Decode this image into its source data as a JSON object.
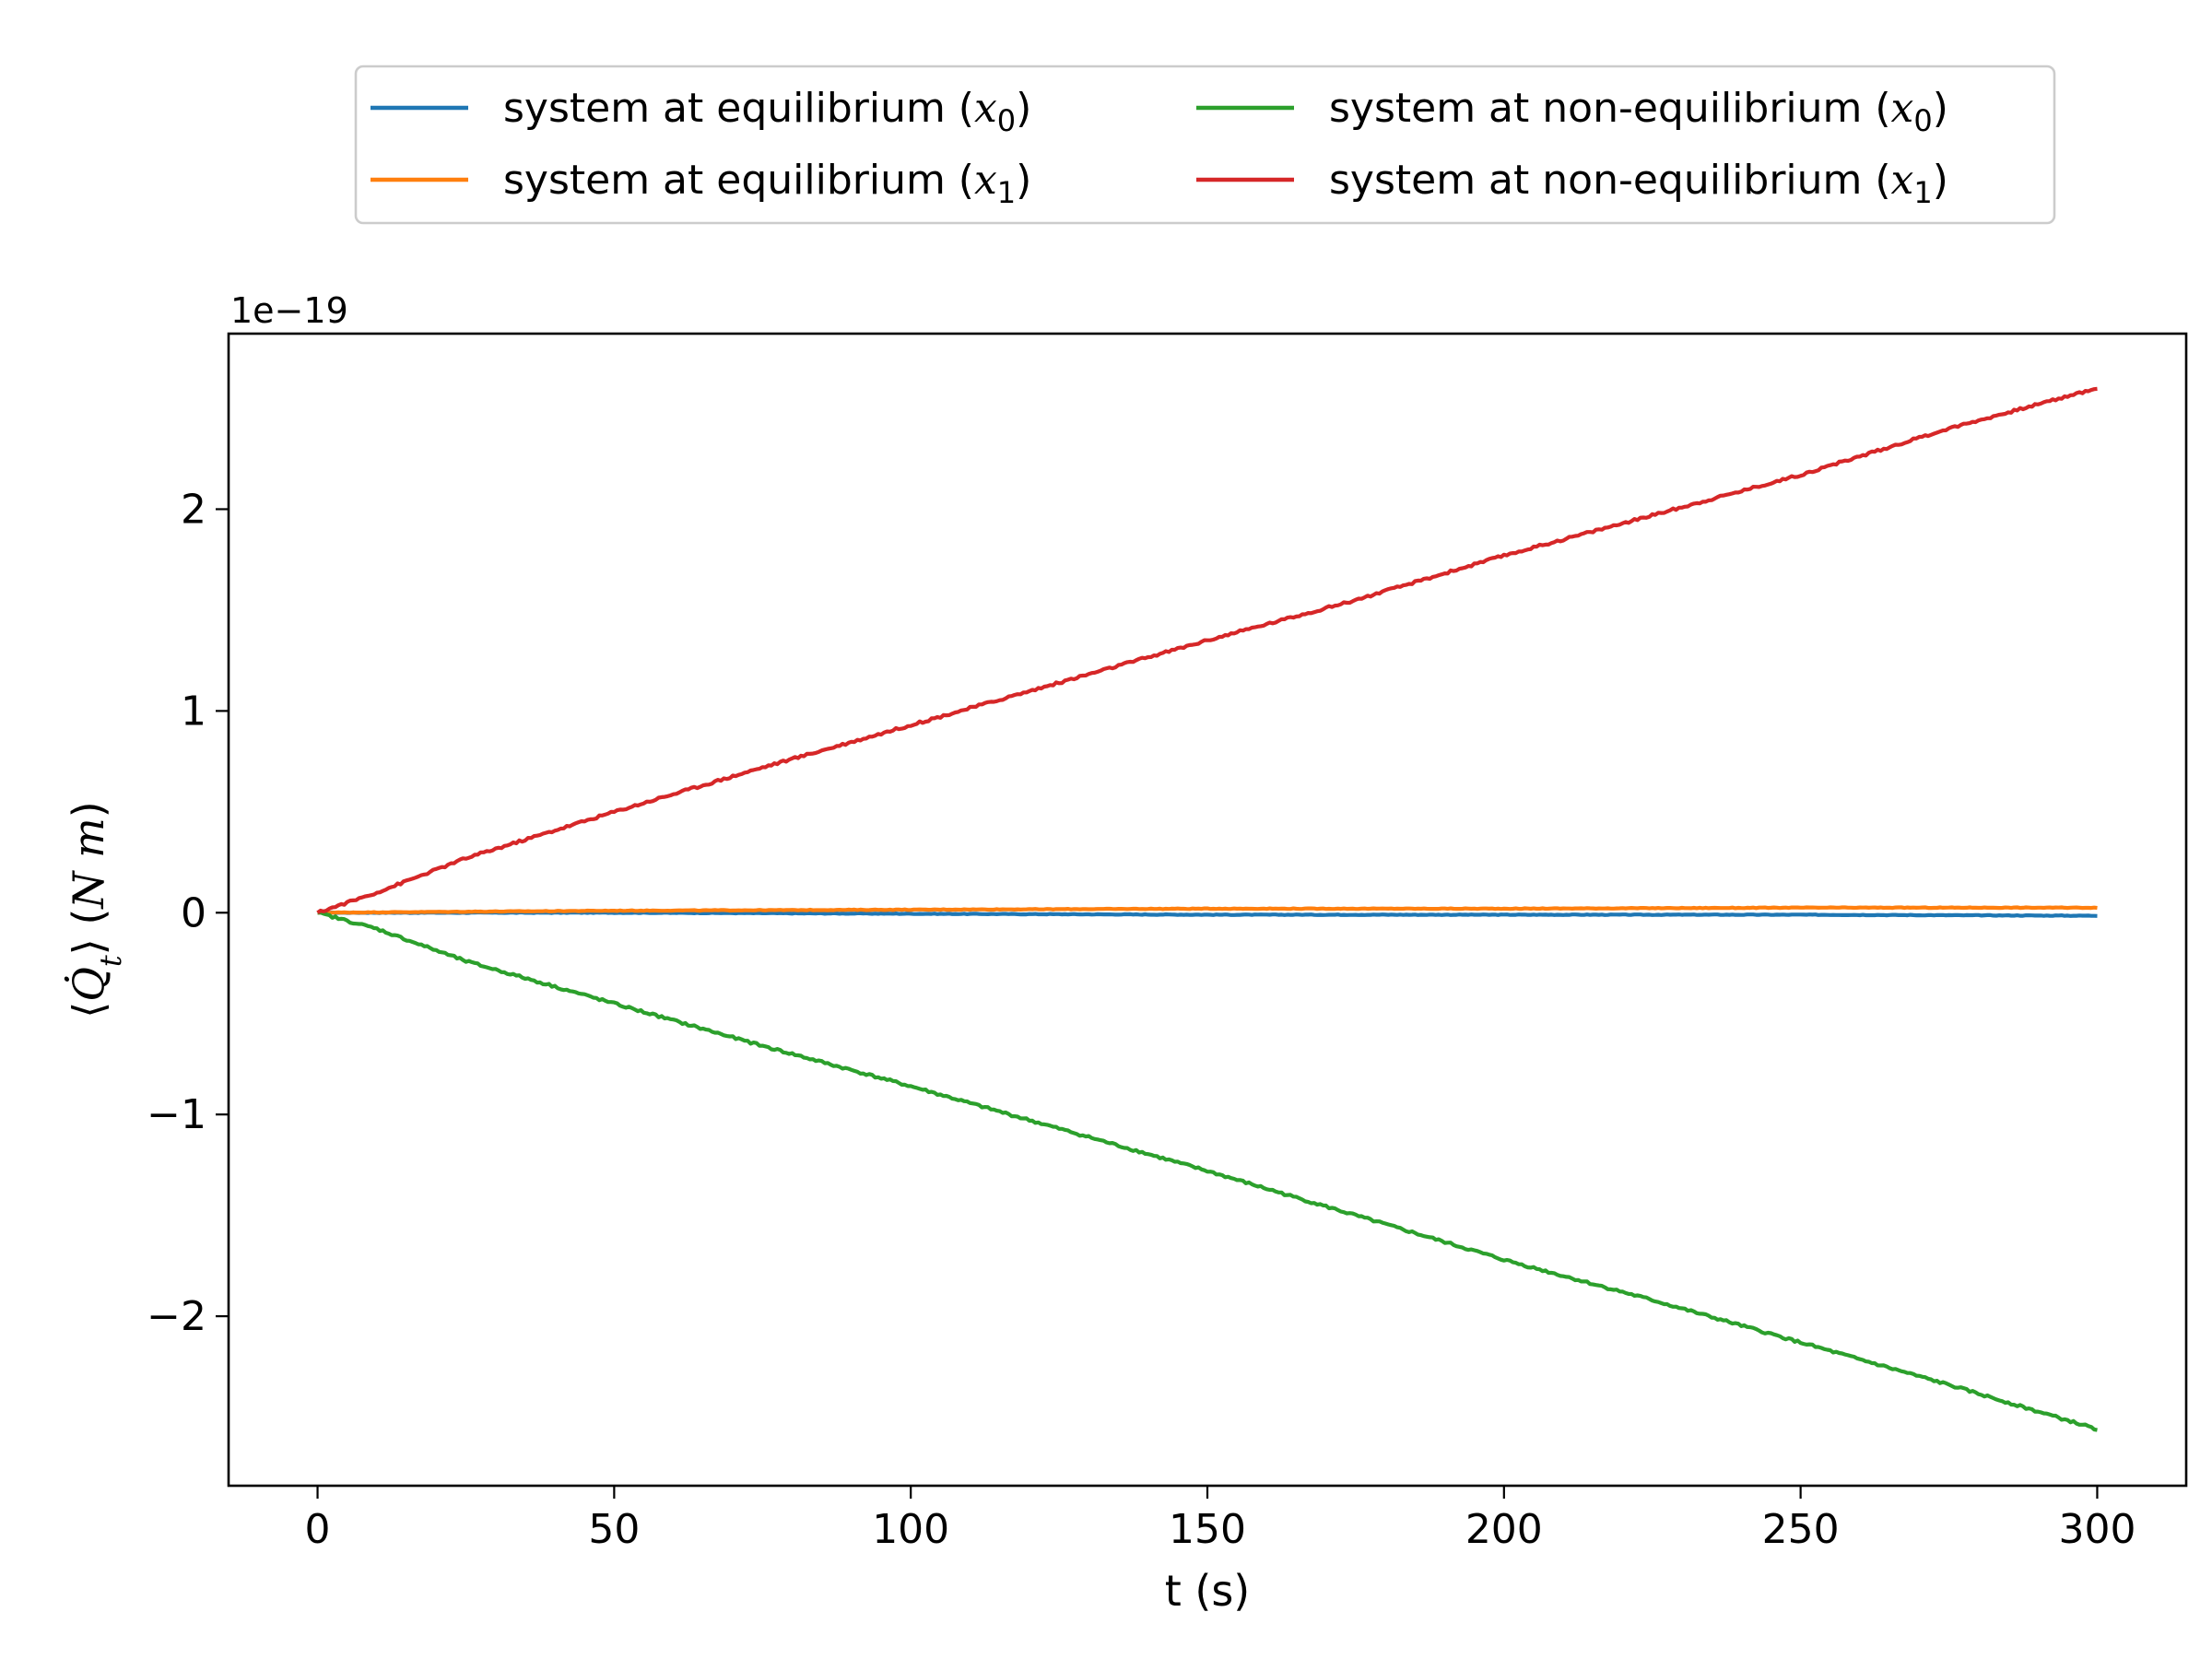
{
  "chart_data": {
    "type": "line",
    "xlabel": "t (s)",
    "ylabel": "⟨Q̇t⟩ (N m)",
    "y_offset_text": "1e−19",
    "xlim": [
      -15,
      315
    ],
    "ylim": [
      -2.84,
      2.87
    ],
    "x_ticks": [
      0,
      50,
      100,
      150,
      200,
      250,
      300
    ],
    "x_tick_labels": [
      "0",
      "50",
      "100",
      "150",
      "200",
      "250",
      "300"
    ],
    "y_ticks": [
      -2,
      -1,
      0,
      1,
      2
    ],
    "y_tick_labels": [
      "−2",
      "−1",
      "0",
      "1",
      "2"
    ],
    "grid": false,
    "legend": {
      "placement": "above plot, two columns",
      "entries": [
        {
          "prefix": "system at equilibrium (",
          "var": "x",
          "sub": "0",
          "suffix": ")"
        },
        {
          "prefix": "system at equilibrium (",
          "var": "x",
          "sub": "1",
          "suffix": ")"
        },
        {
          "prefix": "system at non-equilibrium (",
          "var": "x",
          "sub": "0",
          "suffix": ")"
        },
        {
          "prefix": "system at non-equilibrium (",
          "var": "x",
          "sub": "1",
          "suffix": ")"
        }
      ]
    },
    "series": [
      {
        "name": "system at equilibrium (x0)",
        "color": "#1f77b4",
        "x": [
          0,
          50,
          100,
          150,
          200,
          250,
          300
        ],
        "y": [
          0.0,
          0.0,
          -0.005,
          -0.01,
          -0.01,
          -0.01,
          -0.015
        ]
      },
      {
        "name": "system at equilibrium (x1)",
        "color": "#ff7f0e",
        "x": [
          0,
          50,
          100,
          150,
          200,
          250,
          300
        ],
        "y": [
          0.0,
          0.01,
          0.015,
          0.02,
          0.02,
          0.025,
          0.025
        ]
      },
      {
        "name": "system at non-equilibrium (x0)",
        "color": "#2ca02c",
        "x": [
          0,
          10,
          25,
          50,
          75,
          100,
          125,
          150,
          175,
          200,
          225,
          250,
          275,
          300
        ],
        "y": [
          0.0,
          -0.08,
          -0.24,
          -0.45,
          -0.66,
          -0.86,
          -1.07,
          -1.28,
          -1.5,
          -1.72,
          -1.92,
          -2.13,
          -2.34,
          -2.56
        ]
      },
      {
        "name": "system at non-equilibrium (x1)",
        "color": "#d62728",
        "x": [
          0,
          10,
          25,
          50,
          75,
          100,
          125,
          150,
          175,
          200,
          225,
          250,
          275,
          300
        ],
        "y": [
          0.0,
          0.1,
          0.27,
          0.5,
          0.72,
          0.93,
          1.14,
          1.35,
          1.55,
          1.77,
          1.97,
          2.17,
          2.4,
          2.6
        ]
      }
    ]
  }
}
